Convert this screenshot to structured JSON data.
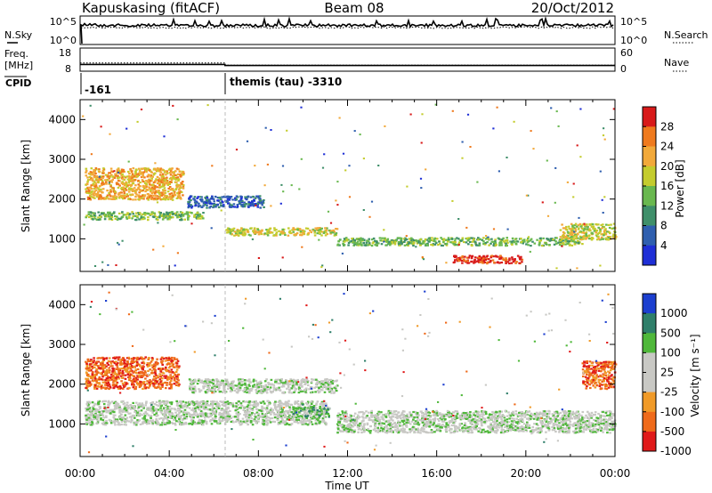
{
  "header": {
    "station": "Kapuskasing (fitACF)",
    "beam": "Beam 08",
    "date": "20/Oct/2012"
  },
  "chart_data": [
    {
      "type": "line",
      "panel": "nsky-nsearch",
      "left_label": "N.Sky",
      "right_label": "N.Search",
      "left_ticks": [
        "10^5",
        "10^0"
      ],
      "right_ticks": [
        "10^5",
        "10^0"
      ]
    },
    {
      "type": "line",
      "panel": "freq-nave",
      "left_label_line1": "Freq.",
      "left_label_line2": "[MHz]",
      "right_label": "Nave",
      "left_ticks": [
        "18",
        "8"
      ],
      "right_ticks": [
        "60",
        "0"
      ],
      "freq_mhz": {
        "x": [
          0,
          6.5,
          6.5,
          24
        ],
        "y": [
          10.2,
          10.2,
          9.6,
          9.6
        ]
      },
      "nave": {
        "x": [
          0,
          6.5,
          6.5,
          24
        ],
        "y": [
          18,
          18,
          11,
          11
        ]
      }
    },
    {
      "type": "table",
      "panel": "cpid",
      "label": "CPID",
      "segments": [
        {
          "start_hour": 0,
          "text": "-161"
        },
        {
          "start_hour": 6.5,
          "text": "themis (tau) -3310"
        }
      ]
    },
    {
      "type": "heatmap",
      "panel": "power",
      "ylabel": "Slant Range [km]",
      "ylim": [
        180,
        4500
      ],
      "yticks": [
        "1000",
        "2000",
        "3000",
        "4000"
      ],
      "xlim": [
        0,
        24
      ],
      "colorbar_label": "Power [dB]",
      "colorbar_ticks": [
        "4",
        "8",
        "12",
        "16",
        "20",
        "24",
        "28"
      ],
      "colorbar_colors": [
        "#1f2fd6",
        "#2f5faf",
        "#3f8f6a",
        "#69b84f",
        "#c4cc2e",
        "#f2a93a",
        "#ef7a1e",
        "#d81a1a"
      ],
      "bands": [
        {
          "x": [
            0.2,
            4.6
          ],
          "y": [
            2000,
            2800
          ],
          "level": 5
        },
        {
          "x": [
            0.2,
            5.5
          ],
          "y": [
            1500,
            1700
          ],
          "level": 3
        },
        {
          "x": [
            4.8,
            8.2
          ],
          "y": [
            1800,
            2100
          ],
          "level": 1
        },
        {
          "x": [
            6.5,
            11.5
          ],
          "y": [
            1100,
            1300
          ],
          "level": 4
        },
        {
          "x": [
            11.5,
            22.5
          ],
          "y": [
            850,
            1050
          ],
          "level": 3
        },
        {
          "x": [
            16.7,
            19.8
          ],
          "y": [
            400,
            600
          ],
          "level": 7
        },
        {
          "x": [
            21.5,
            24.0
          ],
          "y": [
            1000,
            1400
          ],
          "level": 4
        }
      ]
    },
    {
      "type": "heatmap",
      "panel": "velocity",
      "ylabel": "Slant Range [km]",
      "ylim": [
        180,
        4500
      ],
      "yticks": [
        "1000",
        "2000",
        "3000",
        "4000"
      ],
      "xlim": [
        0,
        24
      ],
      "xlabel": "Time UT",
      "xticks": [
        "00:00",
        "04:00",
        "08:00",
        "12:00",
        "16:00",
        "20:00",
        "00:00"
      ],
      "colorbar_label": "Velocity [m s⁻¹]",
      "colorbar_ticks": [
        "1000",
        "500",
        "100",
        "25",
        "-25",
        "-100",
        "-500",
        "-1000"
      ],
      "colorbar_colors": [
        "#1c3fcf",
        "#2f7f6a",
        "#4fb83a",
        "#c8c8c4",
        "#c8c8c4",
        "#f09a28",
        "#ef6a1a",
        "#e01a1a"
      ],
      "bands": [
        {
          "x": [
            0.2,
            4.4
          ],
          "y": [
            1900,
            2700
          ],
          "level": 6
        },
        {
          "x": [
            0.2,
            11.0
          ],
          "y": [
            1000,
            1600
          ],
          "level": 3
        },
        {
          "x": [
            4.8,
            11.5
          ],
          "y": [
            1800,
            2150
          ],
          "level": 3
        },
        {
          "x": [
            9.5,
            11.2
          ],
          "y": [
            1200,
            1450
          ],
          "level": 2
        },
        {
          "x": [
            11.5,
            24.0
          ],
          "y": [
            800,
            1350
          ],
          "level": 3
        },
        {
          "x": [
            22.5,
            24.0
          ],
          "y": [
            1900,
            2600
          ],
          "level": 6
        }
      ]
    }
  ]
}
